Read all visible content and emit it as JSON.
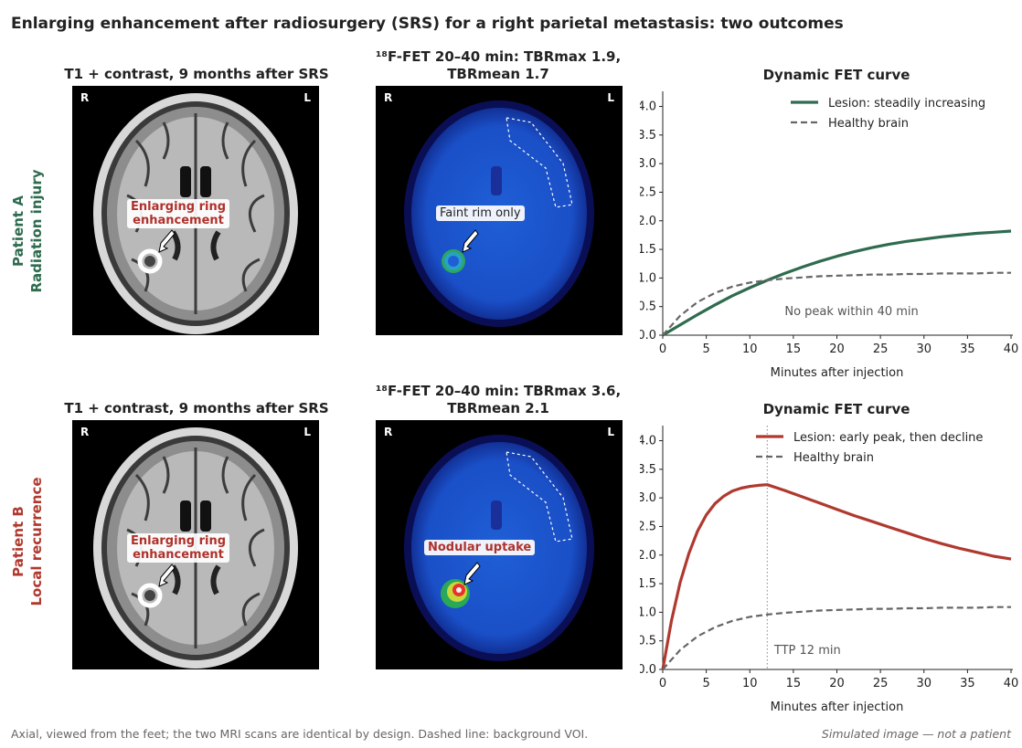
{
  "title": "Enlarging enhancement after radiosurgery (SRS) for a right parietal metastasis: two outcomes",
  "footer": {
    "note": "Axial, viewed from the feet; the two MRI scans are identical by design. Dashed line: background VOI.",
    "disclaimer": "Simulated image — not a patient"
  },
  "colors": {
    "patientA": "#2e6b4f",
    "patientB": "#b0392f",
    "healthy": "#666666"
  },
  "rows": [
    {
      "label_line1": "Patient A",
      "label_line2": "Radiation injury",
      "mri_title": "T1 + contrast, 9 months after SRS",
      "mri_annotation_line1": "Enlarging ring",
      "mri_annotation_line2": "enhancement",
      "pet_title_line1": "¹⁸F-FET 20–40 min: TBRmax 1.9,",
      "pet_title_line2": "TBRmean 1.7",
      "pet_annotation": "Faint rim only",
      "corner_right": "R",
      "corner_left": "L",
      "chart_title": "Dynamic FET curve",
      "chart_note": "No peak within 40 min"
    },
    {
      "label_line1": "Patient B",
      "label_line2": "Local recurrence",
      "mri_title": "T1 + contrast, 9 months after SRS",
      "mri_annotation_line1": "Enlarging ring",
      "mri_annotation_line2": "enhancement",
      "pet_title_line1": "¹⁸F-FET 20–40 min: TBRmax 3.6,",
      "pet_title_line2": "TBRmean 2.1",
      "pet_annotation": "Nodular uptake",
      "corner_right": "R",
      "corner_left": "L",
      "chart_title": "Dynamic FET curve",
      "chart_note": "TTP 12 min"
    }
  ],
  "chart_data": [
    {
      "type": "line",
      "title": "Dynamic FET curve",
      "xlabel": "Minutes after injection",
      "ylabel": "",
      "xlim": [
        0,
        40
      ],
      "ylim": [
        0,
        4.2
      ],
      "xticks": [
        0,
        5,
        10,
        15,
        20,
        25,
        30,
        35,
        40
      ],
      "yticks": [
        0.0,
        0.5,
        1.0,
        1.5,
        2.0,
        2.5,
        3.0,
        3.5,
        4.0
      ],
      "legend": "top-right",
      "annotation": "No peak within 40 min",
      "series": [
        {
          "name": "Lesion: steadily increasing",
          "style": "solid",
          "color": "#2e6b4f",
          "x": [
            0,
            2,
            4,
            6,
            8,
            10,
            12,
            14,
            16,
            18,
            20,
            22,
            24,
            26,
            28,
            30,
            32,
            34,
            36,
            38,
            40
          ],
          "y": [
            0.0,
            0.18,
            0.36,
            0.53,
            0.69,
            0.83,
            0.96,
            1.08,
            1.19,
            1.29,
            1.38,
            1.46,
            1.53,
            1.59,
            1.64,
            1.68,
            1.72,
            1.75,
            1.78,
            1.8,
            1.82
          ]
        },
        {
          "name": "Healthy brain",
          "style": "dashed",
          "color": "#666666",
          "x": [
            0,
            2,
            4,
            6,
            8,
            10,
            12,
            14,
            16,
            18,
            20,
            22,
            24,
            26,
            28,
            30,
            32,
            34,
            36,
            38,
            40
          ],
          "y": [
            0.0,
            0.34,
            0.58,
            0.74,
            0.85,
            0.92,
            0.96,
            0.99,
            1.01,
            1.03,
            1.04,
            1.05,
            1.06,
            1.06,
            1.07,
            1.07,
            1.08,
            1.08,
            1.08,
            1.09,
            1.09
          ]
        }
      ]
    },
    {
      "type": "line",
      "title": "Dynamic FET curve",
      "xlabel": "Minutes after injection",
      "ylabel": "",
      "xlim": [
        0,
        40
      ],
      "ylim": [
        0,
        4.2
      ],
      "xticks": [
        0,
        5,
        10,
        15,
        20,
        25,
        30,
        35,
        40
      ],
      "yticks": [
        0.0,
        0.5,
        1.0,
        1.5,
        2.0,
        2.5,
        3.0,
        3.5,
        4.0
      ],
      "legend": "top-right",
      "annotation": "TTP 12 min",
      "vline_x": 12,
      "series": [
        {
          "name": "Lesion: early peak, then decline",
          "style": "solid",
          "color": "#b0392f",
          "x": [
            0,
            1,
            2,
            3,
            4,
            5,
            6,
            7,
            8,
            9,
            10,
            11,
            12,
            14,
            16,
            18,
            20,
            22,
            24,
            26,
            28,
            30,
            32,
            34,
            36,
            38,
            40
          ],
          "y": [
            0.0,
            0.85,
            1.52,
            2.03,
            2.42,
            2.7,
            2.9,
            3.03,
            3.12,
            3.17,
            3.2,
            3.22,
            3.23,
            3.13,
            3.02,
            2.91,
            2.8,
            2.69,
            2.59,
            2.49,
            2.39,
            2.29,
            2.2,
            2.12,
            2.05,
            1.98,
            1.93
          ]
        },
        {
          "name": "Healthy brain",
          "style": "dashed",
          "color": "#666666",
          "x": [
            0,
            2,
            4,
            6,
            8,
            10,
            12,
            14,
            16,
            18,
            20,
            22,
            24,
            26,
            28,
            30,
            32,
            34,
            36,
            38,
            40
          ],
          "y": [
            0.0,
            0.34,
            0.58,
            0.74,
            0.85,
            0.92,
            0.96,
            0.99,
            1.01,
            1.03,
            1.04,
            1.05,
            1.06,
            1.06,
            1.07,
            1.07,
            1.08,
            1.08,
            1.08,
            1.09,
            1.09
          ]
        }
      ]
    }
  ]
}
